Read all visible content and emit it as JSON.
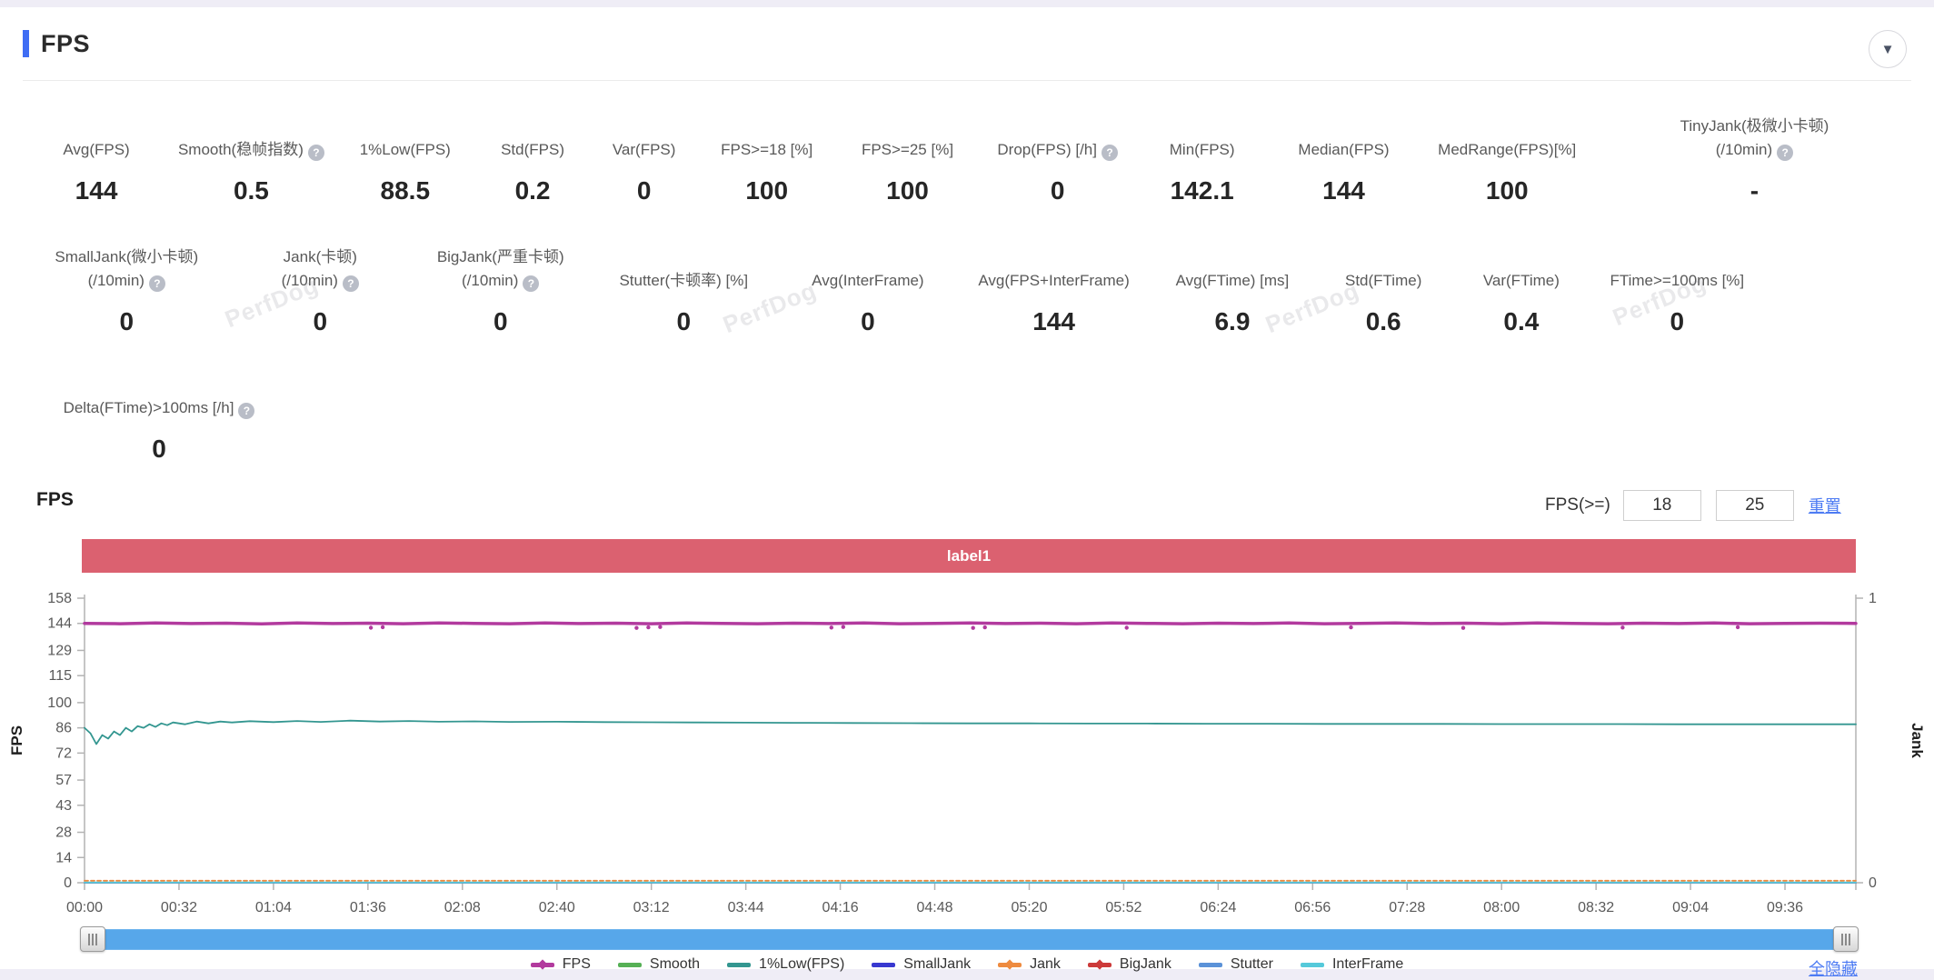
{
  "header": {
    "title": "FPS",
    "collapse_icon": "▼"
  },
  "stats": {
    "watermark": "PerfDog",
    "rows": [
      {
        "items": [
          {
            "label": [
              "Avg(FPS)"
            ],
            "help": false,
            "value": "144"
          },
          {
            "label": [
              "Smooth(稳帧指数)"
            ],
            "help": true,
            "value": "0.5"
          },
          {
            "label": [
              "1%Low(FPS)"
            ],
            "help": false,
            "value": "88.5"
          },
          {
            "label": [
              "Std(FPS)"
            ],
            "help": false,
            "value": "0.2"
          },
          {
            "label": [
              "Var(FPS)"
            ],
            "help": false,
            "value": "0"
          },
          {
            "label": [
              "FPS>=18 [%]"
            ],
            "help": false,
            "value": "100"
          },
          {
            "label": [
              "FPS>=25 [%]"
            ],
            "help": false,
            "value": "100"
          },
          {
            "label": [
              "Drop(FPS) [/h]"
            ],
            "help": true,
            "value": "0"
          },
          {
            "label": [
              "Min(FPS)"
            ],
            "help": false,
            "value": "142.1"
          },
          {
            "label": [
              "Median(FPS)"
            ],
            "help": false,
            "value": "144"
          },
          {
            "label": [
              "MedRange(FPS)[%]"
            ],
            "help": false,
            "value": "100"
          },
          {
            "label": [
              "TinyJank(极微小卡顿)",
              "(/10min)"
            ],
            "help": true,
            "value": "-"
          }
        ]
      },
      {
        "items": [
          {
            "label": [
              "SmallJank(微小卡顿)",
              "(/10min)"
            ],
            "help": true,
            "value": "0"
          },
          {
            "label": [
              "Jank(卡顿)",
              "(/10min)"
            ],
            "help": true,
            "value": "0"
          },
          {
            "label": [
              "BigJank(严重卡顿)",
              "(/10min)"
            ],
            "help": true,
            "value": "0"
          },
          {
            "label": [
              "Stutter(卡顿率) [%]"
            ],
            "help": false,
            "value": "0"
          },
          {
            "label": [
              "Avg(InterFrame)"
            ],
            "help": false,
            "value": "0"
          },
          {
            "label": [
              "Avg(FPS+InterFrame)"
            ],
            "help": false,
            "value": "144"
          },
          {
            "label": [
              "Avg(FTime) [ms]"
            ],
            "help": false,
            "value": "6.9"
          },
          {
            "label": [
              "Std(FTime)"
            ],
            "help": false,
            "value": "0.6"
          },
          {
            "label": [
              "Var(FTime)"
            ],
            "help": false,
            "value": "0.4"
          },
          {
            "label": [
              "FTime>=100ms [%]"
            ],
            "help": false,
            "value": "0"
          }
        ]
      },
      {
        "items": [
          {
            "label": [
              "Delta(FTime)>100ms [/h]"
            ],
            "help": true,
            "value": "0"
          }
        ]
      }
    ]
  },
  "chart_section": {
    "title": "FPS",
    "threshold_label": "FPS(>=)",
    "threshold_value_1": "18",
    "threshold_value_2": "25",
    "reset_link": "重置",
    "hide_all_link": "全隐藏",
    "band_label": "label1",
    "band_color": "#db6170",
    "scrollbar_color": "#57a7ea"
  },
  "chart_data": {
    "type": "line",
    "title": "FPS",
    "x_ticks": [
      "00:00",
      "00:32",
      "01:04",
      "01:36",
      "02:08",
      "02:40",
      "03:12",
      "03:44",
      "04:16",
      "04:48",
      "05:20",
      "05:52",
      "06:24",
      "06:56",
      "07:28",
      "08:00",
      "08:32",
      "09:04",
      "09:36"
    ],
    "x_tick_interval_seconds": 32,
    "x_max_seconds": 600,
    "grid": false,
    "legend_position": "bottom",
    "left_axis": {
      "label": "FPS",
      "range": [
        0,
        158
      ],
      "ticks": [
        0,
        14,
        28,
        43,
        57,
        72,
        86,
        100,
        115,
        129,
        144,
        158
      ]
    },
    "right_axis": {
      "label": "Jank",
      "range": [
        0,
        1
      ],
      "ticks": [
        0,
        1
      ]
    },
    "annotation_band": {
      "text": "label1",
      "color": "#db6170"
    },
    "series": [
      {
        "name": "Smooth",
        "axis": "right",
        "color": "#55b055",
        "width": 1.6,
        "points": [
          [
            0,
            0
          ],
          [
            600,
            0
          ]
        ]
      },
      {
        "name": "SmallJank",
        "axis": "right",
        "color": "#3838d0",
        "width": 1.6,
        "points": [
          [
            0,
            0
          ],
          [
            600,
            0
          ]
        ]
      },
      {
        "name": "BigJank",
        "axis": "right",
        "color": "#cc3a3a",
        "width": 1.6,
        "points": [
          [
            0,
            0
          ],
          [
            600,
            0
          ]
        ]
      },
      {
        "name": "Stutter",
        "axis": "right",
        "color": "#5b92d8",
        "width": 1.6,
        "points": [
          [
            0,
            0
          ],
          [
            600,
            0
          ]
        ]
      },
      {
        "name": "InterFrame",
        "axis": "right",
        "color": "#55c9da",
        "width": 1.8,
        "points": [
          [
            0,
            0.001
          ],
          [
            600,
            0.001
          ]
        ]
      },
      {
        "name": "Jank",
        "axis": "right",
        "color": "#ee8b40",
        "width": 1.8,
        "dash": "4 3",
        "points": [
          [
            0,
            0.007
          ],
          [
            600,
            0.007
          ]
        ]
      },
      {
        "name": "1%Low(FPS)",
        "axis": "left",
        "color": "#339690",
        "width": 1.8,
        "points": [
          [
            0,
            86
          ],
          [
            2,
            83
          ],
          [
            4,
            77
          ],
          [
            6,
            82
          ],
          [
            8,
            80
          ],
          [
            10,
            84
          ],
          [
            12,
            82
          ],
          [
            14,
            86
          ],
          [
            16,
            84
          ],
          [
            18,
            87
          ],
          [
            20,
            86
          ],
          [
            22,
            88
          ],
          [
            24,
            86.5
          ],
          [
            26,
            88.5
          ],
          [
            28,
            87.5
          ],
          [
            30,
            89
          ],
          [
            34,
            88
          ],
          [
            38,
            89.5
          ],
          [
            42,
            88.5
          ],
          [
            46,
            89.5
          ],
          [
            50,
            89
          ],
          [
            56,
            89.7
          ],
          [
            64,
            89.2
          ],
          [
            72,
            89.8
          ],
          [
            80,
            89.3
          ],
          [
            90,
            90
          ],
          [
            100,
            89.5
          ],
          [
            110,
            89.8
          ],
          [
            120,
            89.4
          ],
          [
            132,
            89.6
          ],
          [
            144,
            89.3
          ],
          [
            160,
            89.4
          ],
          [
            176,
            89.2
          ],
          [
            192,
            89.1
          ],
          [
            208,
            89
          ],
          [
            224,
            88.9
          ],
          [
            240,
            88.8
          ],
          [
            260,
            88.7
          ],
          [
            280,
            88.6
          ],
          [
            300,
            88.5
          ],
          [
            320,
            88.5
          ],
          [
            340,
            88.4
          ],
          [
            360,
            88.4
          ],
          [
            380,
            88.3
          ],
          [
            400,
            88.3
          ],
          [
            420,
            88.2
          ],
          [
            440,
            88.2
          ],
          [
            460,
            88.2
          ],
          [
            480,
            88.1
          ],
          [
            500,
            88.1
          ],
          [
            520,
            88.1
          ],
          [
            540,
            88
          ],
          [
            560,
            88
          ],
          [
            580,
            88
          ],
          [
            600,
            88
          ]
        ]
      },
      {
        "name": "FPS",
        "axis": "left",
        "color": "#b23a9e",
        "width": 3.5,
        "points": [
          [
            0,
            144
          ],
          [
            12,
            143.8
          ],
          [
            24,
            144.2
          ],
          [
            36,
            143.9
          ],
          [
            48,
            144.1
          ],
          [
            60,
            143.7
          ],
          [
            72,
            144.2
          ],
          [
            84,
            143.9
          ],
          [
            96,
            144.1
          ],
          [
            108,
            143.8
          ],
          [
            120,
            144.2
          ],
          [
            132,
            144
          ],
          [
            144,
            143.8
          ],
          [
            156,
            144.2
          ],
          [
            168,
            143.9
          ],
          [
            180,
            144.1
          ],
          [
            192,
            143.8
          ],
          [
            204,
            144.2
          ],
          [
            216,
            144
          ],
          [
            228,
            143.8
          ],
          [
            240,
            144.1
          ],
          [
            252,
            143.9
          ],
          [
            264,
            144.2
          ],
          [
            276,
            143.8
          ],
          [
            288,
            144
          ],
          [
            300,
            144.2
          ],
          [
            312,
            143.9
          ],
          [
            324,
            144.1
          ],
          [
            336,
            143.8
          ],
          [
            348,
            144.2
          ],
          [
            360,
            144
          ],
          [
            372,
            143.8
          ],
          [
            384,
            144.1
          ],
          [
            396,
            143.9
          ],
          [
            408,
            144.2
          ],
          [
            420,
            143.8
          ],
          [
            432,
            144
          ],
          [
            444,
            144.2
          ],
          [
            456,
            143.9
          ],
          [
            468,
            144.1
          ],
          [
            480,
            143.8
          ],
          [
            492,
            144.2
          ],
          [
            504,
            144
          ],
          [
            516,
            143.8
          ],
          [
            528,
            144.1
          ],
          [
            540,
            143.9
          ],
          [
            552,
            144.2
          ],
          [
            564,
            143.8
          ],
          [
            576,
            144
          ],
          [
            588,
            144.1
          ],
          [
            600,
            144
          ]
        ],
        "dip_points": [
          [
            97,
            141.6
          ],
          [
            101,
            141.9
          ],
          [
            187,
            141.5
          ],
          [
            191,
            141.8
          ],
          [
            195,
            142
          ],
          [
            253,
            141.7
          ],
          [
            257,
            142
          ],
          [
            301,
            141.5
          ],
          [
            305,
            141.8
          ],
          [
            353,
            141.6
          ],
          [
            429,
            141.8
          ],
          [
            467,
            141.5
          ],
          [
            521,
            141.7
          ],
          [
            560,
            141.9
          ]
        ]
      }
    ],
    "legend": [
      {
        "label": "FPS",
        "color": "#b23a9e",
        "marker": true
      },
      {
        "label": "Smooth",
        "color": "#55b055",
        "marker": false
      },
      {
        "label": "1%Low(FPS)",
        "color": "#339690",
        "marker": false
      },
      {
        "label": "SmallJank",
        "color": "#3838d0",
        "marker": false
      },
      {
        "label": "Jank",
        "color": "#ee8b40",
        "marker": true
      },
      {
        "label": "BigJank",
        "color": "#cc3a3a",
        "marker": true
      },
      {
        "label": "Stutter",
        "color": "#5b92d8",
        "marker": false
      },
      {
        "label": "InterFrame",
        "color": "#55c9da",
        "marker": false
      }
    ]
  }
}
